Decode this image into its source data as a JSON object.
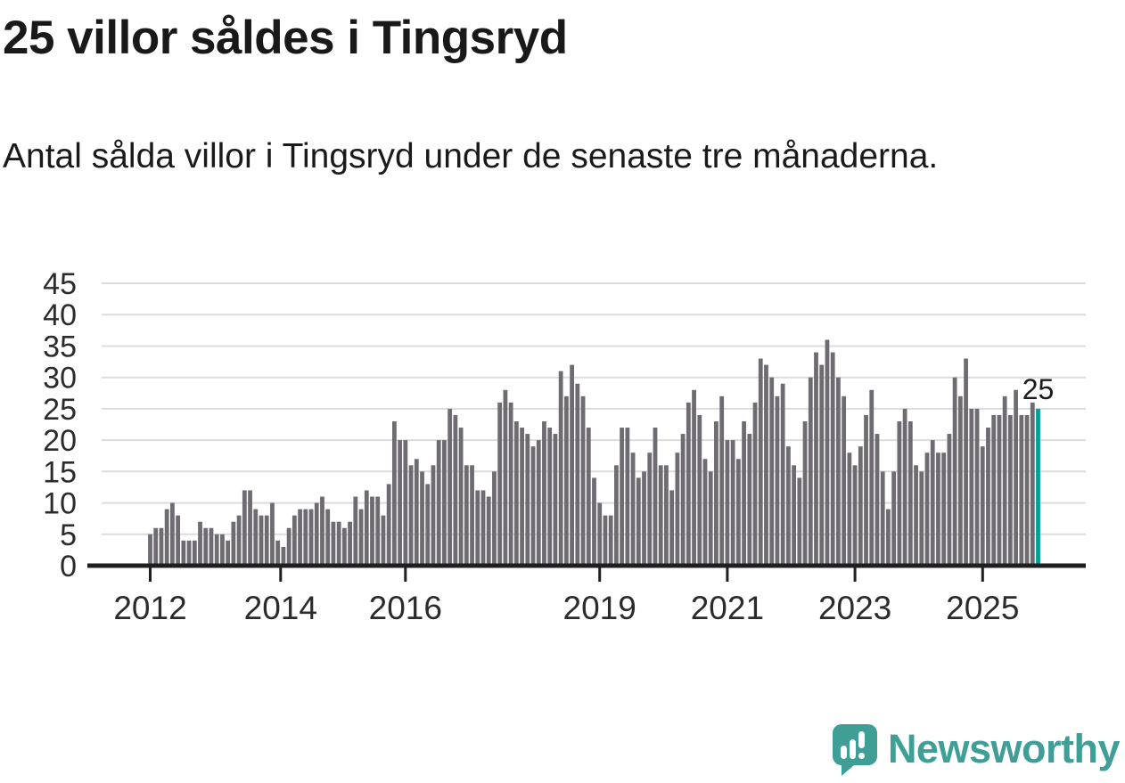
{
  "header": {
    "title": "25 villor såldes i Tingsryd",
    "subtitle": "Antal sålda villor i Tingsryd under de senaste tre månaderna."
  },
  "chart_data": {
    "type": "bar",
    "title": "25 villor såldes i Tingsryd",
    "ylabel": "",
    "xlabel": "",
    "ylim": [
      0,
      45
    ],
    "grid": "horizontal",
    "y_ticks": [
      0,
      5,
      10,
      15,
      20,
      25,
      30,
      35,
      40,
      45
    ],
    "x_tick_labels": [
      "2012",
      "2014",
      "2016",
      "2019",
      "2021",
      "2023",
      "2025"
    ],
    "x_tick_indices": [
      0,
      23.5,
      46,
      81,
      104,
      127,
      150
    ],
    "values": [
      5,
      6,
      6,
      9,
      10,
      8,
      4,
      4,
      4,
      7,
      6,
      6,
      5,
      5,
      4,
      7,
      8,
      12,
      12,
      9,
      8,
      8,
      10,
      4,
      3,
      6,
      8,
      9,
      9,
      9,
      10,
      11,
      9,
      7,
      7,
      6,
      7,
      11,
      9,
      12,
      11,
      11,
      8,
      13,
      23,
      20,
      20,
      16,
      17,
      15,
      13,
      16,
      20,
      20,
      25,
      24,
      22,
      16,
      16,
      12,
      12,
      11,
      15,
      26,
      28,
      26,
      23,
      22,
      21,
      19,
      20,
      23,
      22,
      21,
      31,
      27,
      32,
      29,
      27,
      22,
      14,
      10,
      8,
      8,
      16,
      22,
      22,
      18,
      14,
      15,
      18,
      22,
      16,
      16,
      12,
      18,
      21,
      26,
      28,
      24,
      17,
      15,
      23,
      27,
      20,
      20,
      17,
      23,
      21,
      26,
      33,
      32,
      30,
      27,
      29,
      19,
      16,
      14,
      23,
      30,
      34,
      32,
      36,
      34,
      30,
      27,
      18,
      16,
      19,
      24,
      28,
      21,
      15,
      9,
      15,
      23,
      25,
      23,
      16,
      15,
      18,
      20,
      18,
      18,
      21,
      30,
      27,
      33,
      25,
      25,
      19,
      22,
      24,
      24,
      27,
      24,
      28,
      24,
      24,
      26,
      25
    ],
    "last_value_label": "25",
    "bar_color": "#6e6b72",
    "highlight_color": "#00a09b",
    "axis_color": "#1f1f1f",
    "gridline_color": "#dcdcdc"
  },
  "footer": {
    "brand": "Newsworthy",
    "brand_color": "#3f9e96"
  }
}
